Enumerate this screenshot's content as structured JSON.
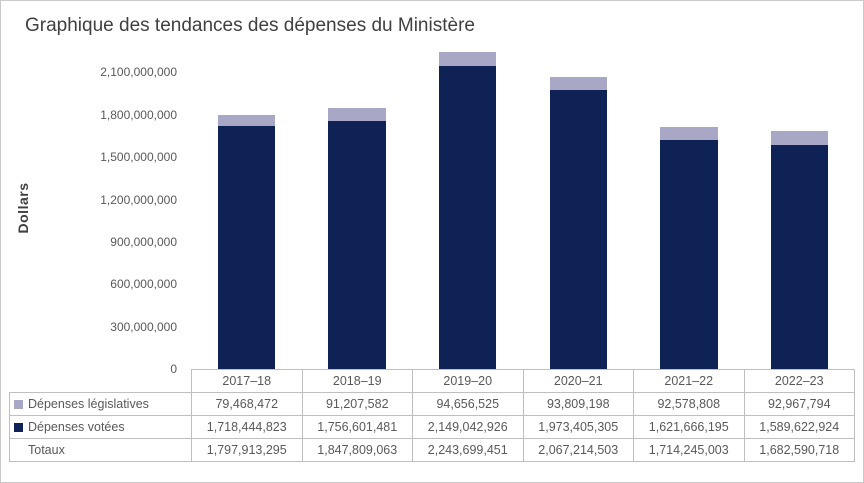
{
  "title": "Graphique des tendances des dépenses du Ministère",
  "colors": {
    "bar_votees": "#0e2255",
    "bar_legislatives": "#a9a7c6",
    "grid_line": "#bfbfbf",
    "title_text": "#404040",
    "axis_text": "#595959"
  },
  "chart_data": {
    "type": "bar",
    "stacked": true,
    "title": "Graphique des tendances des dépenses du Ministère",
    "xlabel": "",
    "ylabel": "Dollars",
    "grid": false,
    "legend_position": "table-left",
    "categories": [
      "2017–18",
      "2018–19",
      "2019–20",
      "2020–21",
      "2021–22",
      "2022–23"
    ],
    "series": [
      {
        "name": "Dépenses législatives",
        "color": "#a9a7c6",
        "values": [
          79468472,
          91207582,
          94656525,
          93809198,
          92578808,
          92967794
        ]
      },
      {
        "name": "Dépenses votées",
        "color": "#0e2255",
        "values": [
          1718444823,
          1756601481,
          2149042926,
          1973405305,
          1621666195,
          1589622924
        ]
      }
    ],
    "totals": {
      "label": "Totaux",
      "values": [
        1797913295,
        1847809063,
        2243699451,
        2067214503,
        1714245003,
        1682590718
      ]
    },
    "yticks": [
      0,
      300000000,
      600000000,
      900000000,
      1200000000,
      1500000000,
      1800000000,
      2100000000
    ],
    "ylim": [
      0,
      2280000000
    ]
  }
}
